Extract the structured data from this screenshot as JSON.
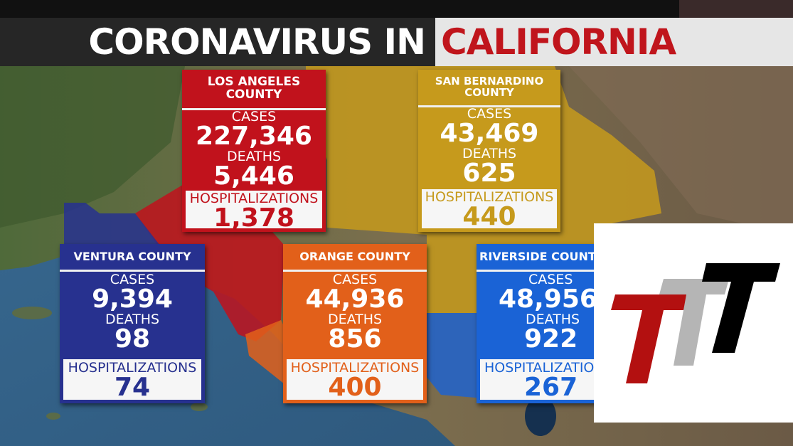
{
  "title": {
    "part1": "CORONAVIRUS IN",
    "part2": "CALIFORNIA"
  },
  "colors": {
    "los_angeles": "#c1121c",
    "san_bernardino": "#c69a1c",
    "ventura": "#27318f",
    "orange": "#e2601a",
    "riverside": "#1a63d6",
    "title_red": "#c0151c"
  },
  "counties": [
    {
      "id": "los_angeles",
      "name": "LOS ANGELES COUNTY",
      "cases_label": "CASES",
      "cases": "227,346",
      "deaths_label": "DEATHS",
      "deaths": "5,446",
      "hosp_label": "HOSPITALIZATIONS",
      "hosp": "1,378"
    },
    {
      "id": "san_bernardino",
      "name": "SAN BERNARDINO COUNTY",
      "cases_label": "CASES",
      "cases": "43,469",
      "deaths_label": "DEATHS",
      "deaths": "625",
      "hosp_label": "HOSPITALIZATIONS",
      "hosp": "440"
    },
    {
      "id": "ventura",
      "name": "VENTURA COUNTY",
      "cases_label": "CASES",
      "cases": "9,394",
      "deaths_label": "DEATHS",
      "deaths": "98",
      "hosp_label": "HOSPITALIZATIONS",
      "hosp": "74"
    },
    {
      "id": "orange",
      "name": "ORANGE COUNTY",
      "cases_label": "CASES",
      "cases": "44,936",
      "deaths_label": "DEATHS",
      "deaths": "856",
      "hosp_label": "HOSPITALIZATIONS",
      "hosp": "400"
    },
    {
      "id": "riverside",
      "name": "RIVERSIDE COUNTY",
      "cases_label": "CASES",
      "cases": "48,956",
      "deaths_label": "DEATHS",
      "deaths": "922",
      "hosp_label": "HOSPITALIZATIONS",
      "hosp": "267"
    }
  ],
  "logo": {
    "icon": "ttt-logo"
  }
}
